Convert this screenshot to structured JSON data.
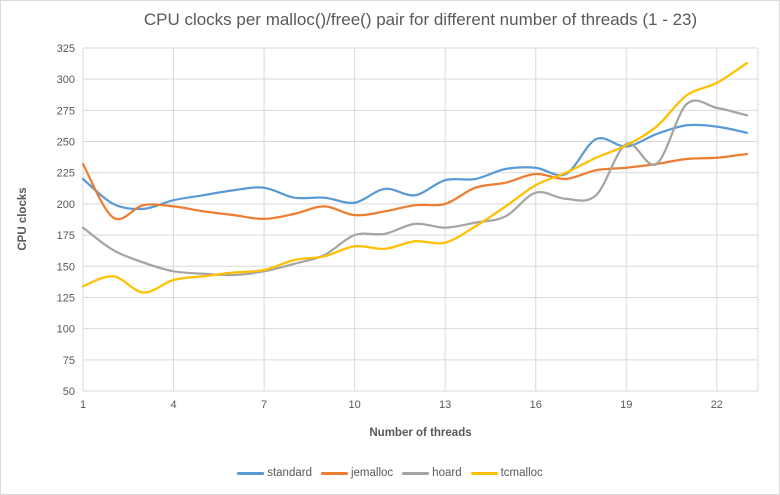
{
  "chart_data": {
    "type": "line",
    "title": "CPU clocks per malloc()/free() pair for different number of threads (1 - 23)",
    "xlabel": "Number of threads",
    "ylabel": "CPU clocks",
    "grid": true,
    "legend_position": "bottom",
    "xlim": [
      1,
      23
    ],
    "ylim": [
      50,
      325
    ],
    "y_tick_step": 25,
    "y_ticks": [
      50,
      75,
      100,
      125,
      150,
      175,
      200,
      225,
      250,
      275,
      300,
      325
    ],
    "x_ticks": [
      1,
      4,
      7,
      10,
      13,
      16,
      19,
      22
    ],
    "x": [
      1,
      2,
      3,
      4,
      5,
      6,
      7,
      8,
      9,
      10,
      11,
      12,
      13,
      14,
      15,
      16,
      17,
      18,
      19,
      20,
      21,
      22,
      23
    ],
    "series": [
      {
        "name": "standard",
        "color": "#5B9BD5",
        "values": [
          220,
          200,
          196,
          203,
          207,
          211,
          213,
          205,
          205,
          201,
          212,
          207,
          219,
          220,
          228,
          229,
          224,
          252,
          246,
          256,
          263,
          262,
          257
        ]
      },
      {
        "name": "jemalloc",
        "color": "#ED7D31",
        "values": [
          232,
          189,
          199,
          198,
          194,
          191,
          188,
          192,
          198,
          191,
          194,
          199,
          200,
          213,
          217,
          224,
          220,
          227,
          229,
          232,
          236,
          237,
          240
        ]
      },
      {
        "name": "hoard",
        "color": "#A5A5A5",
        "values": [
          181,
          163,
          153,
          146,
          144,
          143,
          146,
          152,
          159,
          175,
          176,
          184,
          181,
          185,
          190,
          209,
          204,
          207,
          248,
          232,
          280,
          277,
          271
        ]
      },
      {
        "name": "tcmalloc",
        "color": "#FFC000",
        "values": [
          134,
          142,
          129,
          139,
          142,
          145,
          147,
          155,
          158,
          166,
          164,
          170,
          169,
          182,
          198,
          215,
          225,
          237,
          247,
          262,
          287,
          297,
          313
        ]
      }
    ],
    "style": {
      "grid_color": "#D9D9D9",
      "text_color": "#595959",
      "background": "#FFFFFF"
    }
  }
}
